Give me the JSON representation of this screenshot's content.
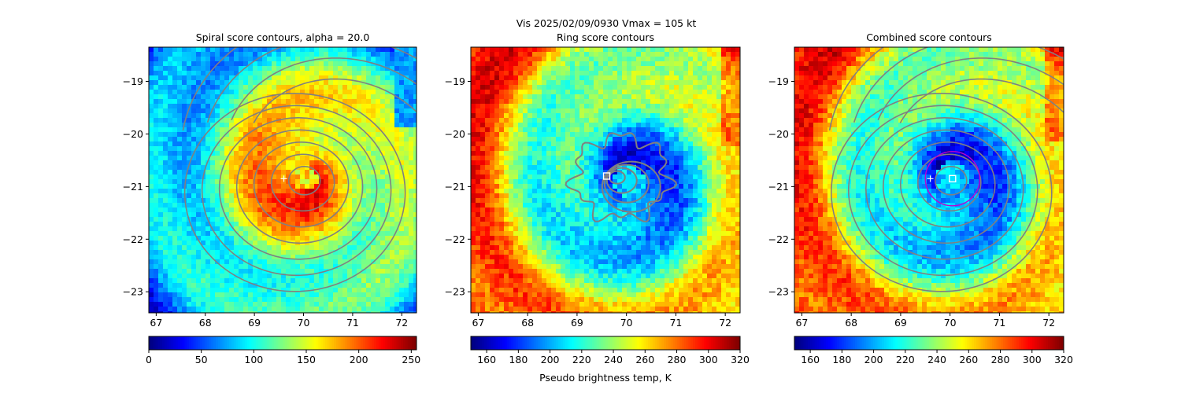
{
  "suptitle": {
    "line1": "Vis  2025/02/09/0930    Vmax = 105 kt"
  },
  "panels": [
    {
      "title": "Spiral score contours, alpha = 20.0"
    },
    {
      "title": "Ring score contours"
    },
    {
      "title": "Combined score contours"
    }
  ],
  "colorbar_label": "Pseudo brightness temp, K",
  "colors": {
    "contour": "#808080",
    "ring": "#c000d0",
    "marker": "#ffffff",
    "colormap": "jet"
  },
  "chart_data": [
    {
      "type": "heatmap",
      "title": "Spiral score contours, alpha = 20.0",
      "xlim": [
        66.85,
        72.3
      ],
      "ylim": [
        -23.4,
        -18.35
      ],
      "xticks": [
        67,
        68,
        69,
        70,
        71,
        72
      ],
      "yticks": [
        -19,
        -20,
        -21,
        -22,
        -23
      ],
      "colorbar": {
        "ticks": [
          0,
          50,
          100,
          150,
          200,
          250
        ],
        "range": [
          0,
          255
        ],
        "cmap": "jet_r"
      },
      "center": [
        70.05,
        -20.85
      ],
      "markers": [
        {
          "shape": "plus",
          "x": 69.6,
          "y": -20.85
        }
      ],
      "contours": "spiral"
    },
    {
      "type": "heatmap",
      "title": "Ring score contours",
      "xlim": [
        66.85,
        72.3
      ],
      "ylim": [
        -23.4,
        -18.35
      ],
      "xticks": [
        67,
        68,
        69,
        70,
        71,
        72
      ],
      "yticks": [
        -19,
        -20,
        -21,
        -22,
        -23
      ],
      "colorbar": {
        "ticks": [
          160,
          180,
          200,
          220,
          240,
          260,
          280,
          300,
          320
        ],
        "range": [
          150,
          320
        ],
        "cmap": "jet_r"
      },
      "center": [
        70.05,
        -20.9
      ],
      "markers": [
        {
          "shape": "square",
          "x": 69.6,
          "y": -20.8
        }
      ],
      "contours": "ring"
    },
    {
      "type": "heatmap",
      "title": "Combined score contours",
      "xlim": [
        66.85,
        72.3
      ],
      "ylim": [
        -23.4,
        -18.35
      ],
      "xticks": [
        67,
        68,
        69,
        70,
        71,
        72
      ],
      "yticks": [
        -19,
        -20,
        -21,
        -22,
        -23
      ],
      "colorbar": {
        "ticks": [
          160,
          180,
          200,
          220,
          240,
          260,
          280,
          300,
          320
        ],
        "range": [
          150,
          320
        ],
        "cmap": "jet_r"
      },
      "center": [
        70.05,
        -20.85
      ],
      "markers": [
        {
          "shape": "plus",
          "x": 69.6,
          "y": -20.85
        },
        {
          "shape": "square",
          "x": 70.05,
          "y": -20.85
        }
      ],
      "contours": "combined",
      "ring_circle": {
        "x": 70.05,
        "y": -20.85,
        "r": 0.55
      }
    }
  ]
}
